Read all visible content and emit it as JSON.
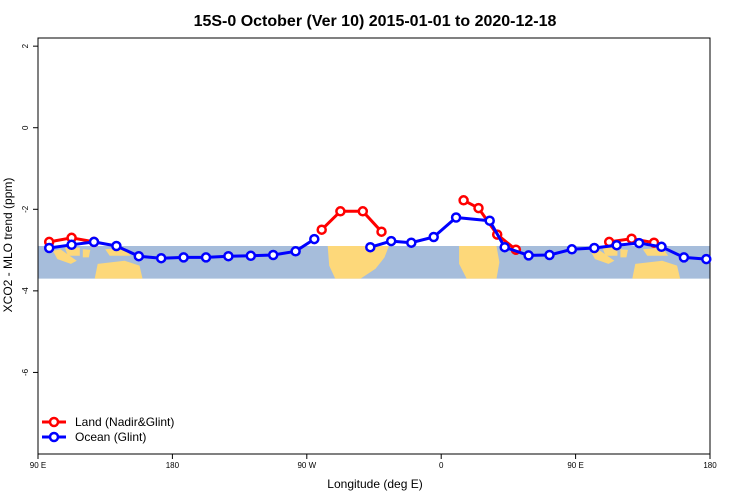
{
  "chart_data": {
    "type": "line",
    "title": "15S-0 October (Ver 10)   2015-01-01 to 2020-12-18",
    "xlabel": "Longitude (deg E)",
    "ylabel": "XCO2 - MLO trend (ppm)",
    "xlim": [
      90,
      540
    ],
    "ylim": [
      -8,
      2.2
    ],
    "x_ticks": [
      {
        "value": 90,
        "label": "90 E"
      },
      {
        "value": 180,
        "label": "180"
      },
      {
        "value": 270,
        "label": "90 W"
      },
      {
        "value": 360,
        "label": "0"
      },
      {
        "value": 450,
        "label": "90 E"
      },
      {
        "value": 540,
        "label": "180"
      }
    ],
    "y_ticks": [
      {
        "value": 2,
        "label": "2"
      },
      {
        "value": 0,
        "label": "0"
      },
      {
        "value": -2,
        "label": "-2"
      },
      {
        "value": -4,
        "label": "-4"
      },
      {
        "value": -6,
        "label": "-6"
      }
    ],
    "map_band": {
      "lat_top": -2.9,
      "lat_bottom": -3.7,
      "ocean_color": "#a6bddb",
      "land_color": "#fdd87a"
    },
    "legend_position": "bottom-left",
    "series": [
      {
        "name": "Land (Nadir&Glint)",
        "color": "#ff0000",
        "segments": [
          {
            "x": [
              97.5,
              112.5,
              127.5
            ],
            "y": [
              -2.8,
              -2.7,
              -2.8
            ]
          },
          {
            "x": [
              280,
              292.5,
              307.5,
              320
            ],
            "y": [
              -2.5,
              -2.05,
              -2.05,
              -2.55
            ]
          },
          {
            "x": [
              375,
              385,
              397.5,
              410
            ],
            "y": [
              -1.78,
              -1.97,
              -2.62,
              -2.99
            ]
          },
          {
            "x": [
              472.5,
              487.5,
              502.5
            ],
            "y": [
              -2.8,
              -2.72,
              -2.82
            ]
          }
        ]
      },
      {
        "name": "Ocean (Glint)",
        "color": "#0000ff",
        "segments": [
          {
            "x": [
              97.5,
              112.5,
              127.5,
              142.5,
              157.5,
              172.5,
              187.5,
              202.5,
              217.5,
              232.5,
              247.5,
              262.5,
              275
            ],
            "y": [
              -2.95,
              -2.87,
              -2.8,
              -2.9,
              -3.15,
              -3.2,
              -3.18,
              -3.18,
              -3.15,
              -3.14,
              -3.12,
              -3.03,
              -2.73
            ]
          },
          {
            "x": [
              312.5,
              326.5,
              340,
              355,
              370,
              392.5,
              402.5,
              418.5,
              432.5,
              447.5,
              462.5,
              477.5,
              492.5,
              507.5,
              522.5,
              537.5
            ],
            "y": [
              -2.93,
              -2.78,
              -2.82,
              -2.68,
              -2.2,
              -2.28,
              -2.93,
              -3.13,
              -3.12,
              -2.98,
              -2.95,
              -2.88,
              -2.83,
              -2.92,
              -3.18,
              -3.22
            ]
          }
        ]
      }
    ]
  }
}
